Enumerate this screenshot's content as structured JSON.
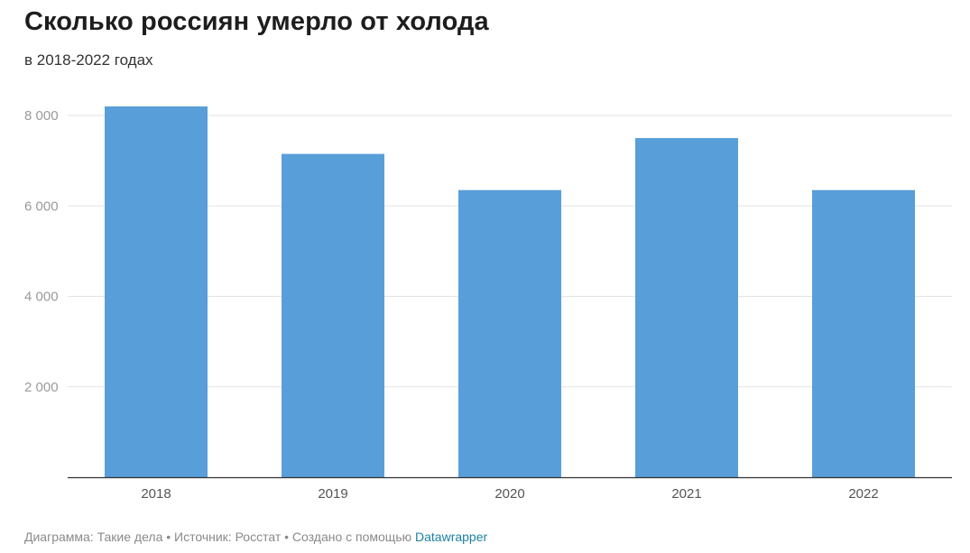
{
  "header": {
    "title": "Сколько россиян умерло от холода",
    "subtitle": "в 2018-2022 годах"
  },
  "footer": {
    "text": "Диаграмма: Такие дела • Источник: Росстат • Создано с помощью ",
    "link_label": "Datawrapper"
  },
  "colors": {
    "bar": "#589ed9",
    "grid": "#e3e3e3",
    "axis": "#333333"
  },
  "chart_data": {
    "type": "bar",
    "title": "Сколько россиян умерло от холода",
    "subtitle": "в 2018-2022 годах",
    "categories": [
      "2018",
      "2019",
      "2020",
      "2021",
      "2022"
    ],
    "values": [
      8200,
      7150,
      6350,
      7500,
      6350
    ],
    "ylim": [
      0,
      8000
    ],
    "yticks": [
      2000,
      4000,
      6000,
      8000
    ],
    "ytick_labels": [
      "2 000",
      "4 000",
      "6 000",
      "8 000"
    ],
    "xlabel": "",
    "ylabel": "",
    "grid": true,
    "legend": "none"
  }
}
